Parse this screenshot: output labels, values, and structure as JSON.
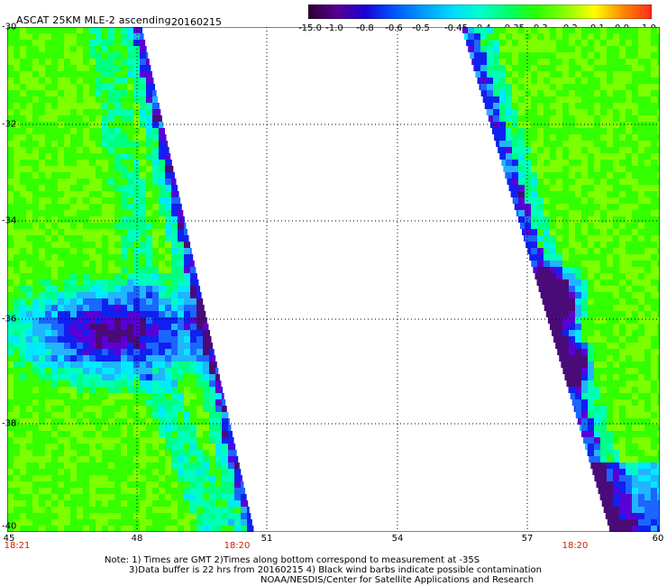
{
  "header": {
    "title": "ASCAT 25KM MLE-2 ascending",
    "date": "20160215"
  },
  "colorbar": {
    "labels": [
      "-15.0",
      "-1.0",
      "-0.8",
      "-0.6",
      "-0.5",
      "-0.45",
      "-0.4",
      "-0.35",
      "-0.3",
      "-0.2",
      "-0.1",
      "0.0",
      "1.0"
    ],
    "colors": [
      "#2a0030",
      "#55008f",
      "#1a00d8",
      "#0055ff",
      "#0099ff",
      "#00d8ff",
      "#00ffd0",
      "#00ff66",
      "#2cff00",
      "#88ff00",
      "#ffff00",
      "#ff8800",
      "#ff2a1a"
    ]
  },
  "map": {
    "lat_labels": [
      "-30",
      "-32",
      "-34",
      "-36",
      "-38",
      "-40"
    ],
    "lon_labels": [
      "45",
      "48",
      "51",
      "54",
      "57",
      "60"
    ],
    "times": [
      "18:21",
      "18:20",
      "18:20"
    ]
  },
  "notes": {
    "line1": "Note: 1) Times are GMT 2)Times along bottom correspond to measurement at -35S",
    "line2": "3)Data buffer is 22 hrs from 20160215 4) Black wind barbs indicate possible contamination",
    "line3": "NOAA/NESDIS/Center for Satellite Applications and Research"
  }
}
